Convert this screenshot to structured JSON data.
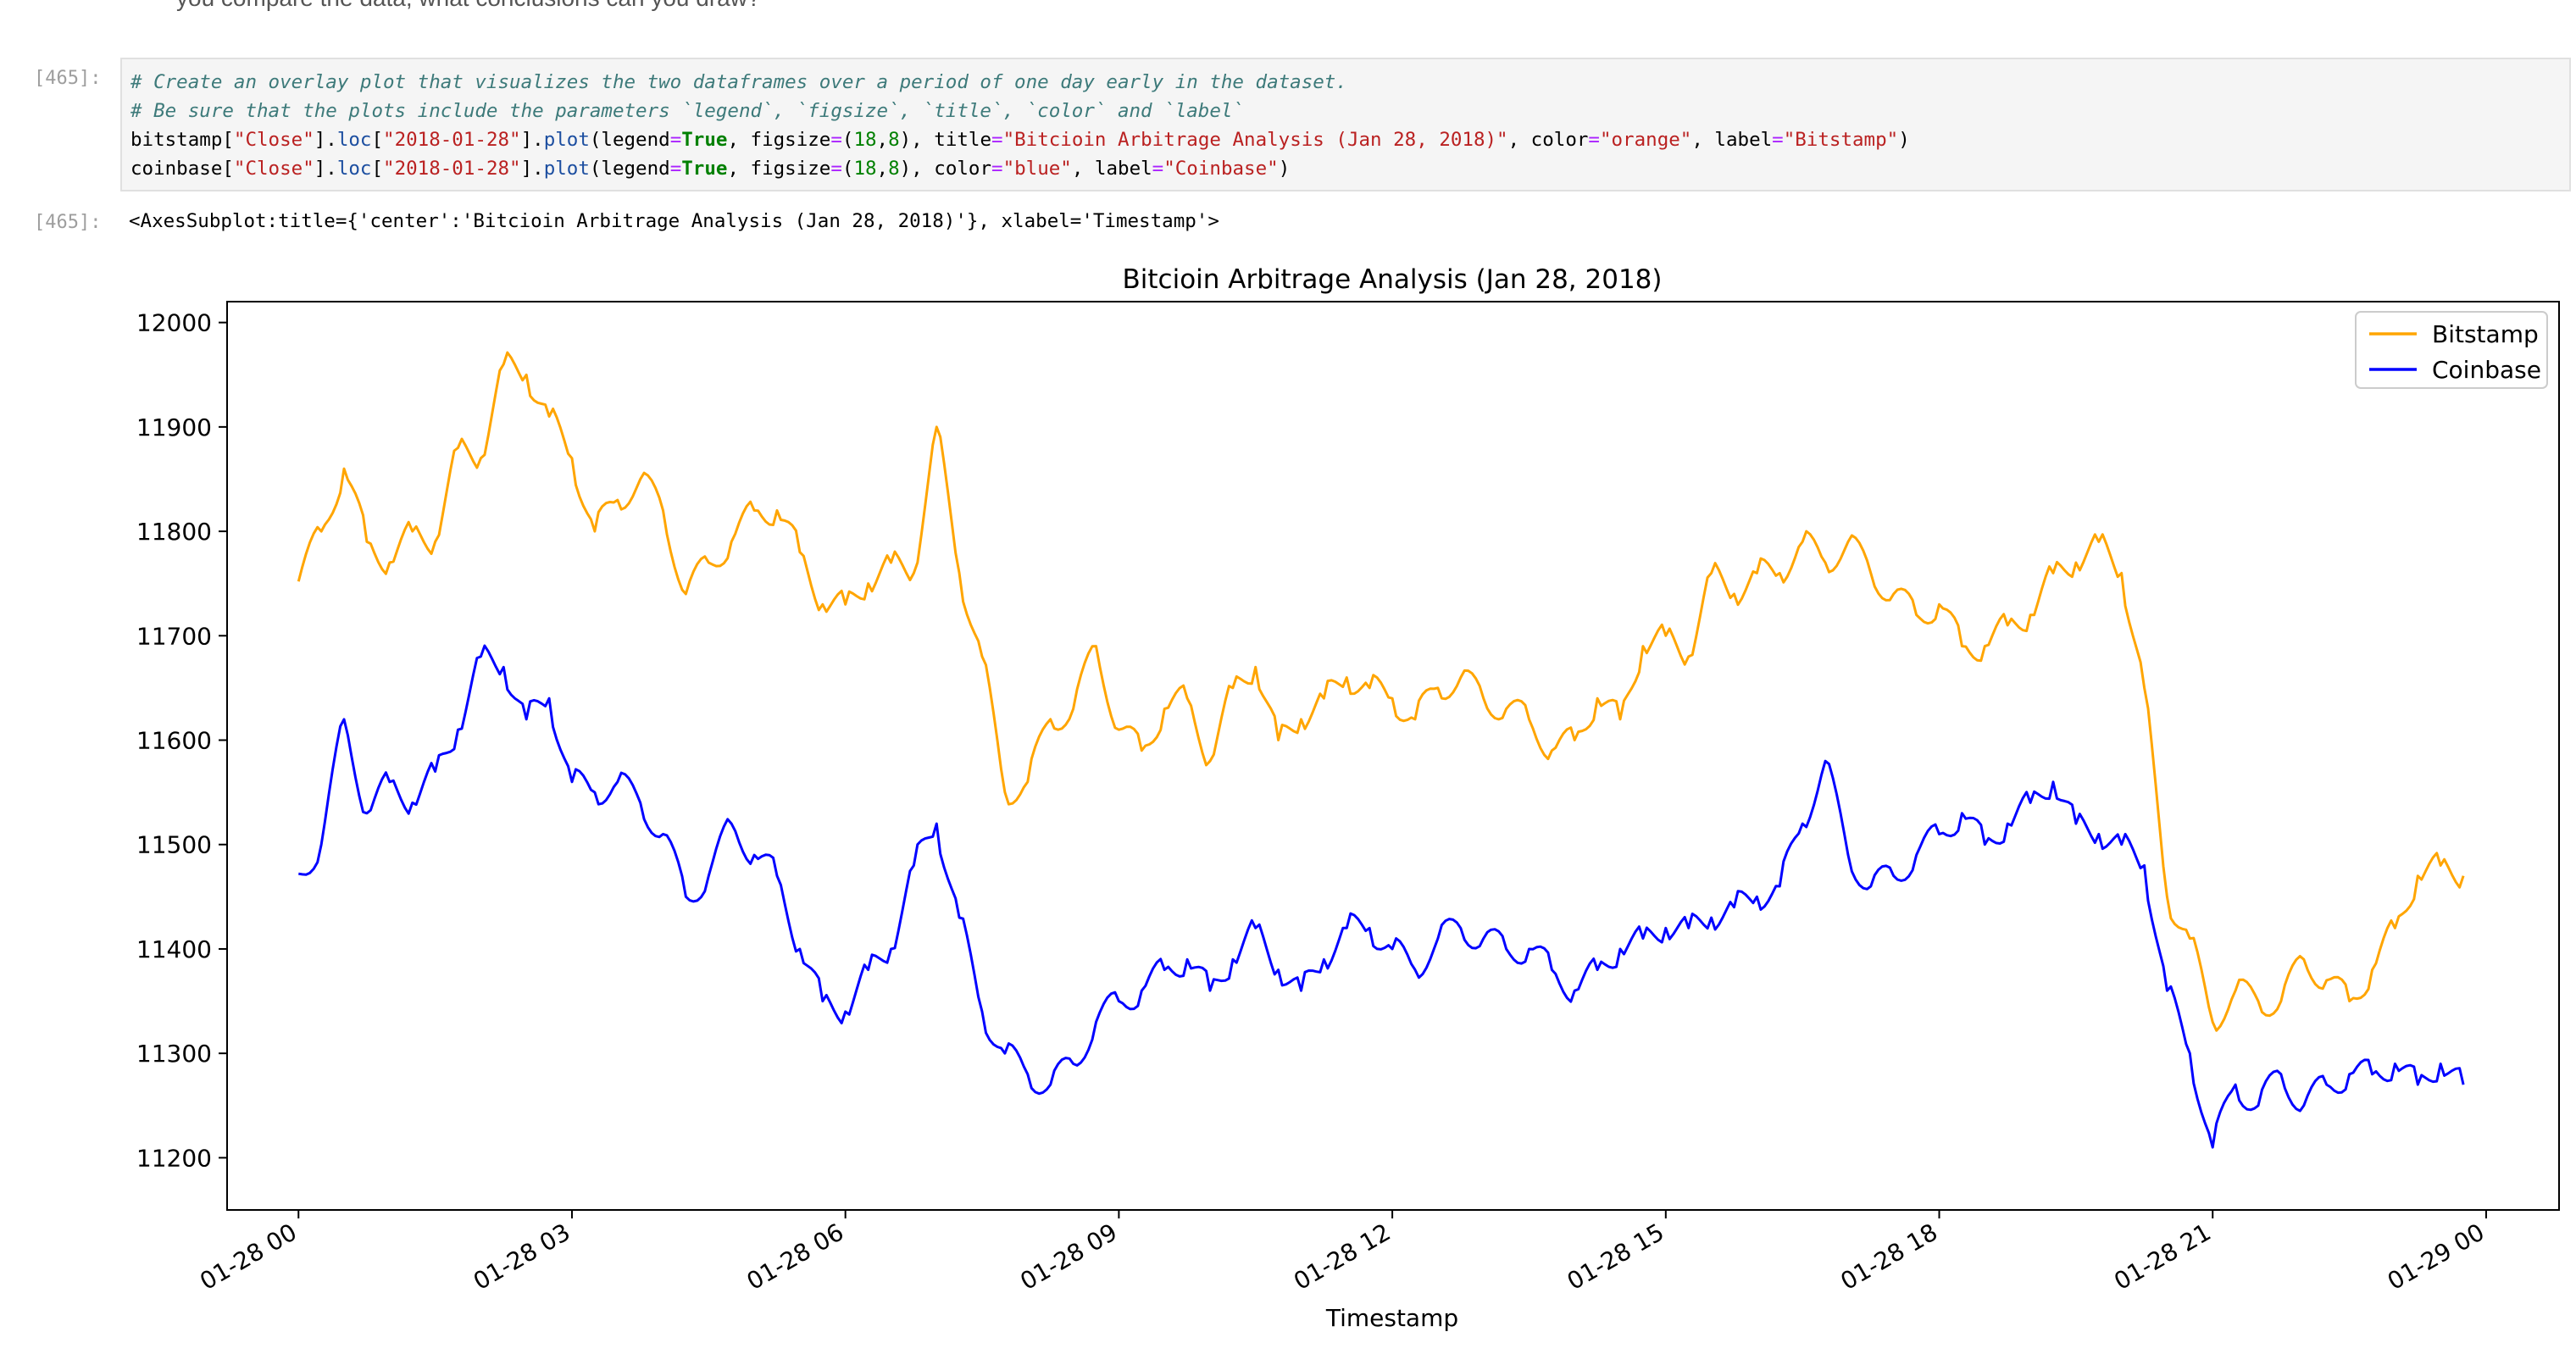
{
  "notebook": {
    "top_text": "you compare the data, what conclusions can you draw?",
    "input_prompt": "[465]:",
    "output_prompt": "[465]:",
    "code_lines": [
      [
        {
          "t": "# Create an overlay plot that visualizes the two dataframes over a period of one day early in the dataset.",
          "c": "c-comment"
        }
      ],
      [
        {
          "t": "# Be sure that the plots include the parameters `legend`, `figsize`, `title`, `color` and `label`",
          "c": "c-comment"
        }
      ],
      [
        {
          "t": "bitstamp[",
          "c": ""
        },
        {
          "t": "\"Close\"",
          "c": "c-str"
        },
        {
          "t": "].",
          "c": ""
        },
        {
          "t": "loc",
          "c": "c-attr"
        },
        {
          "t": "[",
          "c": ""
        },
        {
          "t": "\"2018-01-28\"",
          "c": "c-str"
        },
        {
          "t": "].",
          "c": ""
        },
        {
          "t": "plot",
          "c": "c-attr"
        },
        {
          "t": "(legend",
          "c": ""
        },
        {
          "t": "=",
          "c": "c-op"
        },
        {
          "t": "True",
          "c": "c-kw"
        },
        {
          "t": ", figsize",
          "c": ""
        },
        {
          "t": "=",
          "c": "c-op"
        },
        {
          "t": "(",
          "c": ""
        },
        {
          "t": "18",
          "c": "c-num"
        },
        {
          "t": ",",
          "c": ""
        },
        {
          "t": "8",
          "c": "c-num"
        },
        {
          "t": "), title",
          "c": ""
        },
        {
          "t": "=",
          "c": "c-op"
        },
        {
          "t": "\"Bitcioin Arbitrage Analysis (Jan 28, 2018)\"",
          "c": "c-str"
        },
        {
          "t": ", color",
          "c": ""
        },
        {
          "t": "=",
          "c": "c-op"
        },
        {
          "t": "\"orange\"",
          "c": "c-str"
        },
        {
          "t": ", label",
          "c": ""
        },
        {
          "t": "=",
          "c": "c-op"
        },
        {
          "t": "\"Bitstamp\"",
          "c": "c-str"
        },
        {
          "t": ")",
          "c": ""
        }
      ],
      [
        {
          "t": "coinbase[",
          "c": ""
        },
        {
          "t": "\"Close\"",
          "c": "c-str"
        },
        {
          "t": "].",
          "c": ""
        },
        {
          "t": "loc",
          "c": "c-attr"
        },
        {
          "t": "[",
          "c": ""
        },
        {
          "t": "\"2018-01-28\"",
          "c": "c-str"
        },
        {
          "t": "].",
          "c": ""
        },
        {
          "t": "plot",
          "c": "c-attr"
        },
        {
          "t": "(legend",
          "c": ""
        },
        {
          "t": "=",
          "c": "c-op"
        },
        {
          "t": "True",
          "c": "c-kw"
        },
        {
          "t": ", figsize",
          "c": ""
        },
        {
          "t": "=",
          "c": "c-op"
        },
        {
          "t": "(",
          "c": ""
        },
        {
          "t": "18",
          "c": "c-num"
        },
        {
          "t": ",",
          "c": ""
        },
        {
          "t": "8",
          "c": "c-num"
        },
        {
          "t": "), color",
          "c": ""
        },
        {
          "t": "=",
          "c": "c-op"
        },
        {
          "t": "\"blue\"",
          "c": "c-str"
        },
        {
          "t": ", label",
          "c": ""
        },
        {
          "t": "=",
          "c": "c-op"
        },
        {
          "t": "\"Coinbase\"",
          "c": "c-str"
        },
        {
          "t": ")",
          "c": ""
        }
      ]
    ],
    "output_repr": "<AxesSubplot:title={'center':'Bitcioin Arbitrage Analysis (Jan 28, 2018)'}, xlabel='Timestamp'>"
  },
  "chart_data": {
    "type": "line",
    "title": "Bitcioin Arbitrage Analysis (Jan 28, 2018)",
    "xlabel": "Timestamp",
    "ylabel": "",
    "xlim": [
      "2018-01-27 23:13",
      "2018-01-29 00:48"
    ],
    "ylim": [
      11150,
      12020
    ],
    "x_ticks": [
      "01-28 00",
      "01-28 03",
      "01-28 06",
      "01-28 09",
      "01-28 12",
      "01-28 15",
      "01-28 18",
      "01-28 21",
      "01-29 00"
    ],
    "y_ticks": [
      11200,
      11300,
      11400,
      11500,
      11600,
      11700,
      11800,
      11900,
      12000
    ],
    "grid": false,
    "legend": "top-right",
    "x": [
      "2018-01-28 00:00",
      "2018-01-28 00:15",
      "2018-01-28 00:30",
      "2018-01-28 00:45",
      "2018-01-28 01:00",
      "2018-01-28 01:15",
      "2018-01-28 01:30",
      "2018-01-28 01:45",
      "2018-01-28 02:00",
      "2018-01-28 02:15",
      "2018-01-28 02:30",
      "2018-01-28 02:45",
      "2018-01-28 03:00",
      "2018-01-28 03:15",
      "2018-01-28 03:30",
      "2018-01-28 03:45",
      "2018-01-28 04:00",
      "2018-01-28 04:15",
      "2018-01-28 04:30",
      "2018-01-28 04:45",
      "2018-01-28 05:00",
      "2018-01-28 05:15",
      "2018-01-28 05:30",
      "2018-01-28 05:45",
      "2018-01-28 06:00",
      "2018-01-28 06:15",
      "2018-01-28 06:30",
      "2018-01-28 06:45",
      "2018-01-28 07:00",
      "2018-01-28 07:15",
      "2018-01-28 07:30",
      "2018-01-28 07:45",
      "2018-01-28 08:00",
      "2018-01-28 08:15",
      "2018-01-28 08:30",
      "2018-01-28 08:45",
      "2018-01-28 09:00",
      "2018-01-28 09:15",
      "2018-01-28 09:30",
      "2018-01-28 09:45",
      "2018-01-28 10:00",
      "2018-01-28 10:15",
      "2018-01-28 10:30",
      "2018-01-28 10:45",
      "2018-01-28 11:00",
      "2018-01-28 11:15",
      "2018-01-28 11:30",
      "2018-01-28 11:45",
      "2018-01-28 12:00",
      "2018-01-28 12:15",
      "2018-01-28 12:30",
      "2018-01-28 12:45",
      "2018-01-28 13:00",
      "2018-01-28 13:15",
      "2018-01-28 13:30",
      "2018-01-28 13:45",
      "2018-01-28 14:00",
      "2018-01-28 14:15",
      "2018-01-28 14:30",
      "2018-01-28 14:45",
      "2018-01-28 15:00",
      "2018-01-28 15:15",
      "2018-01-28 15:30",
      "2018-01-28 15:45",
      "2018-01-28 16:00",
      "2018-01-28 16:15",
      "2018-01-28 16:30",
      "2018-01-28 16:45",
      "2018-01-28 17:00",
      "2018-01-28 17:15",
      "2018-01-28 17:30",
      "2018-01-28 17:45",
      "2018-01-28 18:00",
      "2018-01-28 18:15",
      "2018-01-28 18:30",
      "2018-01-28 18:45",
      "2018-01-28 19:00",
      "2018-01-28 19:15",
      "2018-01-28 19:30",
      "2018-01-28 19:45",
      "2018-01-28 20:00",
      "2018-01-28 20:15",
      "2018-01-28 20:30",
      "2018-01-28 20:45",
      "2018-01-28 21:00",
      "2018-01-28 21:15",
      "2018-01-28 21:30",
      "2018-01-28 21:45",
      "2018-01-28 22:00",
      "2018-01-28 22:15",
      "2018-01-28 22:30",
      "2018-01-28 22:45",
      "2018-01-28 23:00",
      "2018-01-28 23:15",
      "2018-01-28 23:30",
      "2018-01-28 23:45"
    ],
    "series": [
      {
        "name": "Bitstamp",
        "color": "#ffa500",
        "values": [
          11752,
          11800,
          11860,
          11790,
          11770,
          11800,
          11790,
          11880,
          11870,
          11960,
          11950,
          11910,
          11870,
          11800,
          11830,
          11850,
          11820,
          11740,
          11770,
          11790,
          11820,
          11820,
          11780,
          11730,
          11730,
          11750,
          11770,
          11760,
          11900,
          11760,
          11680,
          11550,
          11560,
          11620,
          11630,
          11690,
          11610,
          11590,
          11630,
          11640,
          11580,
          11650,
          11670,
          11600,
          11620,
          11640,
          11660,
          11650,
          11640,
          11620,
          11650,
          11660,
          11640,
          11630,
          11620,
          11590,
          11600,
          11640,
          11620,
          11690,
          11700,
          11680,
          11760,
          11740,
          11760,
          11760,
          11790,
          11770,
          11790,
          11760,
          11740,
          11720,
          11730,
          11690,
          11690,
          11710,
          11720,
          11760,
          11770,
          11790,
          11760,
          11650,
          11450,
          11410,
          11330,
          11360,
          11350,
          11350,
          11390,
          11370,
          11350,
          11380,
          11420,
          11470,
          11480,
          11470
        ]
      },
      {
        "name": "Coinbase",
        "color": "#0000ff",
        "values": [
          11472,
          11500,
          11620,
          11530,
          11560,
          11540,
          11570,
          11610,
          11680,
          11670,
          11620,
          11640,
          11560,
          11550,
          11560,
          11540,
          11510,
          11450,
          11470,
          11520,
          11490,
          11470,
          11400,
          11350,
          11340,
          11380,
          11400,
          11480,
          11520,
          11430,
          11340,
          11300,
          11280,
          11270,
          11290,
          11330,
          11350,
          11360,
          11380,
          11390,
          11360,
          11390,
          11420,
          11380,
          11360,
          11390,
          11420,
          11420,
          11400,
          11380,
          11410,
          11420,
          11410,
          11400,
          11400,
          11380,
          11360,
          11380,
          11400,
          11410,
          11420,
          11420,
          11430,
          11440,
          11450,
          11460,
          11520,
          11580,
          11490,
          11460,
          11470,
          11490,
          11510,
          11530,
          11500,
          11520,
          11540,
          11560,
          11520,
          11510,
          11500,
          11480,
          11360,
          11300,
          11210,
          11270,
          11250,
          11280,
          11250,
          11270,
          11280,
          11280,
          11290,
          11270,
          11290,
          11270
        ]
      }
    ]
  }
}
